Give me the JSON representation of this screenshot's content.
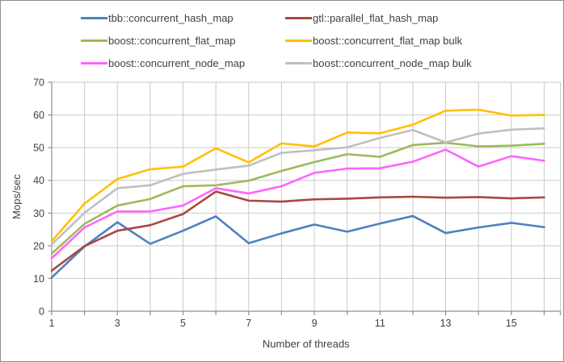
{
  "window": {
    "background": "#ffffff",
    "border_color": "#909090"
  },
  "colors": {
    "grid": "#c9c9c9",
    "axis": "#8e8e8e",
    "tick_text": "#404040",
    "axis_title_text": "#404040"
  },
  "chart_data": {
    "type": "line",
    "title": "",
    "xlabel": "Number of threads",
    "ylabel": "Mops/sec",
    "xlim": [
      1,
      16
    ],
    "ylim": [
      0,
      70
    ],
    "grid": true,
    "legend_position": "top",
    "x": [
      1,
      2,
      3,
      4,
      5,
      6,
      7,
      8,
      9,
      10,
      11,
      12,
      13,
      14,
      15,
      16
    ],
    "x_ticks": [
      1,
      3,
      5,
      7,
      9,
      11,
      13,
      15
    ],
    "y_ticks": [
      0,
      10,
      20,
      30,
      40,
      50,
      60,
      70
    ],
    "series": [
      {
        "name": "tbb::concurrent_hash_map",
        "color": "#4F81BD",
        "values": [
          10.3,
          19.8,
          27.2,
          20.6,
          24.6,
          29.0,
          20.8,
          23.8,
          26.5,
          24.3,
          26.8,
          29.1,
          23.9,
          25.6,
          27.0,
          25.7
        ]
      },
      {
        "name": "gtl::parallel_flat_hash_map",
        "color": "#A94743",
        "values": [
          12.4,
          19.9,
          24.6,
          26.3,
          29.7,
          36.6,
          33.8,
          33.5,
          34.2,
          34.4,
          34.8,
          35.0,
          34.7,
          34.9,
          34.5,
          34.8
        ]
      },
      {
        "name": "boost::concurrent_flat_map",
        "color": "#9BBB59",
        "values": [
          17.6,
          26.7,
          32.3,
          34.3,
          38.2,
          38.5,
          39.9,
          42.9,
          45.6,
          48.0,
          47.2,
          50.8,
          51.5,
          50.4,
          50.6,
          51.2
        ]
      },
      {
        "name": "boost::concurrent_flat_map bulk",
        "color": "#FFC000",
        "values": [
          21.4,
          32.9,
          40.4,
          43.4,
          44.2,
          49.8,
          45.5,
          51.3,
          50.4,
          54.6,
          54.4,
          57.0,
          61.3,
          61.6,
          59.8,
          60.0
        ]
      },
      {
        "name": "boost::concurrent_node_map",
        "color": "#FF63FF",
        "values": [
          16.2,
          25.6,
          30.5,
          30.5,
          32.3,
          37.6,
          36.0,
          38.2,
          42.3,
          43.6,
          43.7,
          45.7,
          49.4,
          44.2,
          47.4,
          46.0
        ]
      },
      {
        "name": "boost::concurrent_node_map bulk",
        "color": "#BFBFBF",
        "values": [
          20.4,
          30.1,
          37.6,
          38.5,
          42.0,
          43.3,
          44.5,
          48.4,
          49.2,
          50.1,
          53.0,
          55.4,
          51.6,
          54.3,
          55.5,
          55.9
        ]
      }
    ]
  }
}
